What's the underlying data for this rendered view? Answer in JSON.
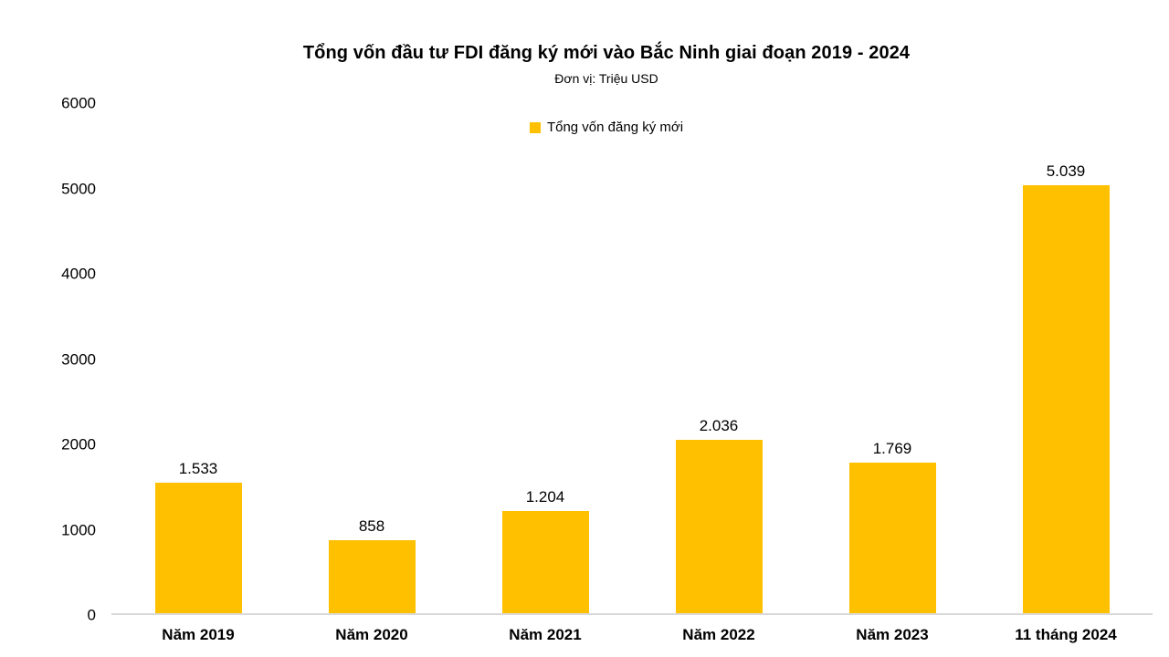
{
  "page": {
    "background_color": "#ffffff",
    "text_color": "#000000"
  },
  "chart_data": {
    "type": "bar",
    "title": "Tổng vốn đầu tư FDI đăng ký mới vào Bắc Ninh giai đoạn 2019 - 2024",
    "subtitle": "Đơn vị: Triệu USD",
    "unit": "Triệu USD",
    "legend": {
      "label": "Tổng vốn đăng ký mới",
      "position": "top-center"
    },
    "categories": [
      "Năm 2019",
      "Năm 2020",
      "Năm 2021",
      "Năm 2022",
      "Năm 2023",
      "11 tháng 2024"
    ],
    "series": [
      {
        "name": "Tổng vốn đăng ký mới",
        "values": [
          1533,
          858,
          1204,
          2036,
          1769,
          5039
        ],
        "labels": [
          "1.533",
          "858",
          "1.204",
          "2.036",
          "1.769",
          "5.039"
        ],
        "color": "#FFC000"
      }
    ],
    "ylim": [
      0,
      6000
    ],
    "yticks": [
      0,
      1000,
      2000,
      3000,
      4000,
      5000,
      6000
    ],
    "grid": false,
    "axis_line_color": "#d9d9d9",
    "xlabel": "",
    "ylabel": ""
  }
}
